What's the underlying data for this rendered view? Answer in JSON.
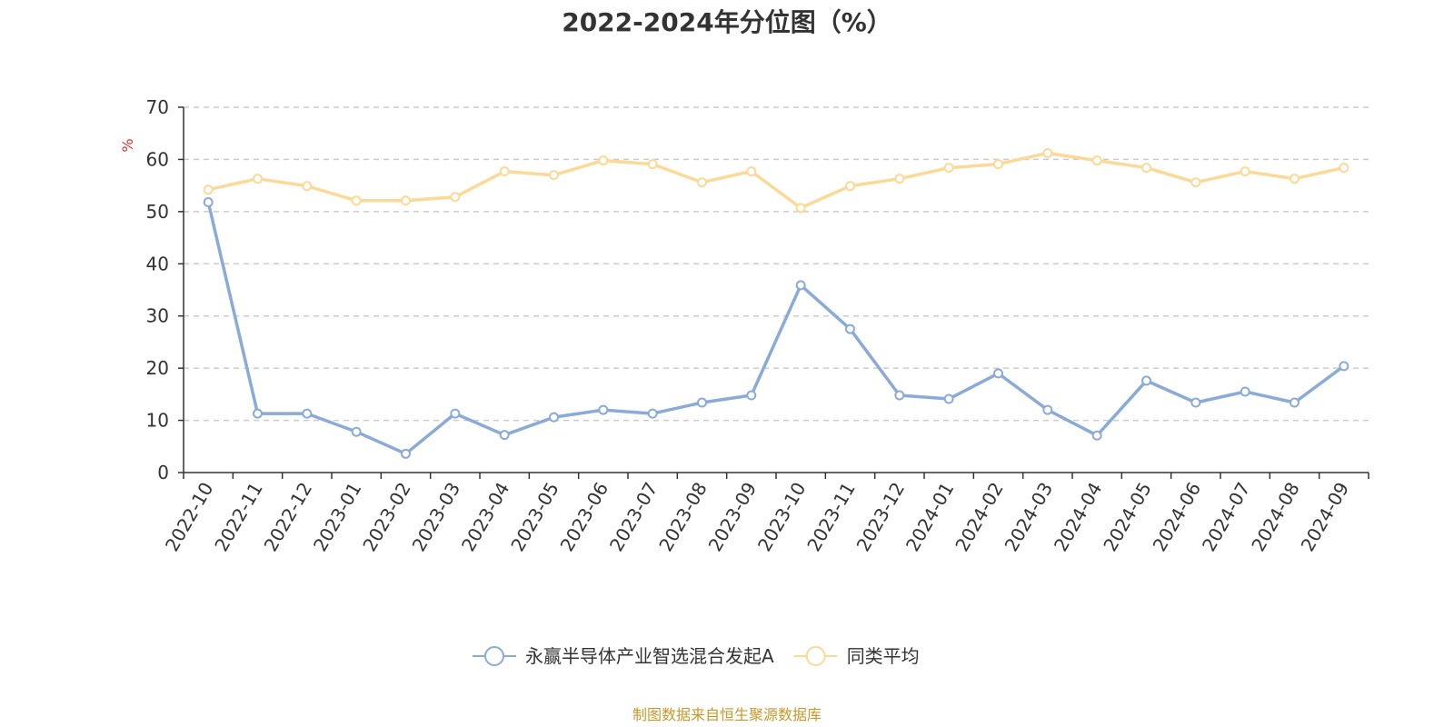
{
  "chart_data": {
    "type": "line",
    "title": "2022-2024年分位图（%）",
    "ylabel": "%",
    "xlabel": "",
    "ylim": [
      0,
      70
    ],
    "yticks": [
      0,
      10,
      20,
      30,
      40,
      50,
      60,
      70
    ],
    "grid": true,
    "legend_position": "bottom-center",
    "categories": [
      "2022-10",
      "2022-11",
      "2022-12",
      "2023-01",
      "2023-02",
      "2023-03",
      "2023-04",
      "2023-05",
      "2023-06",
      "2023-07",
      "2023-08",
      "2023-09",
      "2023-10",
      "2023-11",
      "2023-12",
      "2024-01",
      "2024-02",
      "2024-03",
      "2024-04",
      "2024-05",
      "2024-06",
      "2024-07",
      "2024-08",
      "2024-09"
    ],
    "series": [
      {
        "name": "永赢半导体产业智选混合发起A",
        "color": "#8aaad8",
        "values": [
          51.8,
          11.3,
          11.3,
          7.8,
          3.6,
          11.3,
          7.2,
          10.6,
          12.0,
          11.3,
          13.4,
          14.8,
          35.9,
          27.5,
          14.8,
          14.1,
          19.0,
          12.0,
          7.1,
          17.6,
          13.4,
          15.5,
          13.4,
          20.4
        ]
      },
      {
        "name": "同类平均",
        "color": "#fbd996",
        "values": [
          54.2,
          56.3,
          54.9,
          52.1,
          52.1,
          52.8,
          57.7,
          57.0,
          59.8,
          59.1,
          55.6,
          57.7,
          50.7,
          54.9,
          56.3,
          58.4,
          59.1,
          61.2,
          59.8,
          58.4,
          55.6,
          57.7,
          56.3,
          58.4
        ]
      }
    ]
  },
  "footer": {
    "source": "制图数据来自恒生聚源数据库",
    "source_color": "#c8982a"
  },
  "colors": {
    "ylabel": "#e03030",
    "axis": "#333333",
    "grid": "#cccccc"
  }
}
